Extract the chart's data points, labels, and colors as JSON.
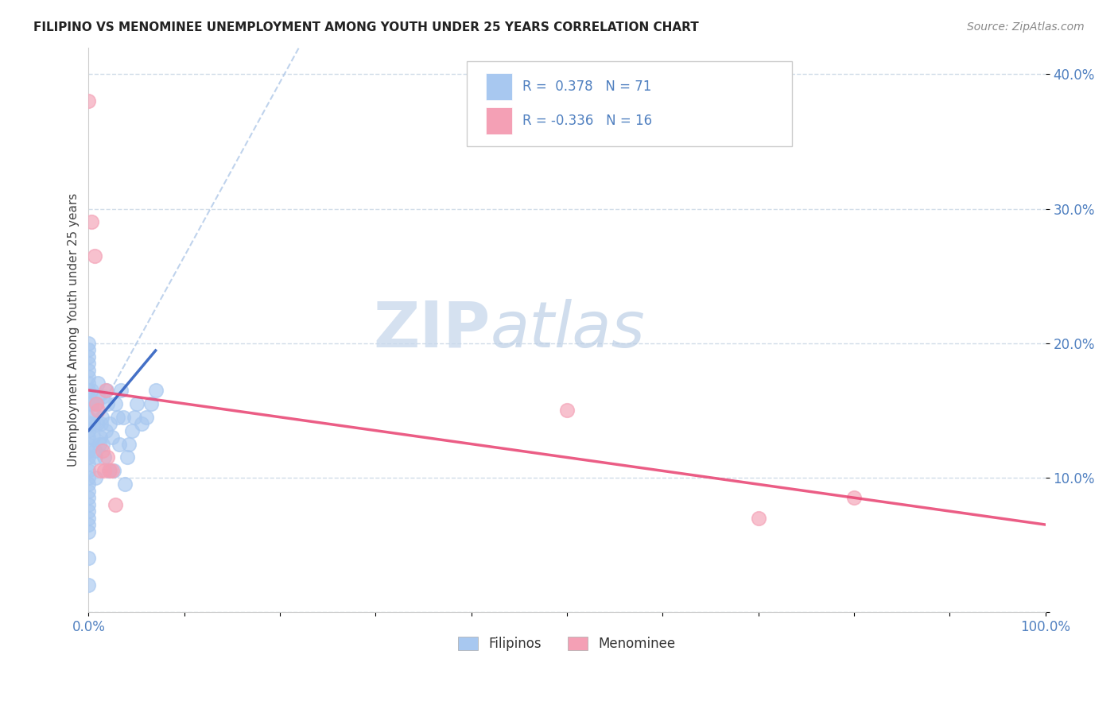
{
  "title": "FILIPINO VS MENOMINEE UNEMPLOYMENT AMONG YOUTH UNDER 25 YEARS CORRELATION CHART",
  "source": "Source: ZipAtlas.com",
  "ylabel": "Unemployment Among Youth under 25 years",
  "xlim": [
    0,
    1.0
  ],
  "ylim": [
    0,
    0.42
  ],
  "filipino_color": "#a8c8f0",
  "menominee_color": "#f4a0b5",
  "filipino_line_color": "#3060c0",
  "menominee_line_color": "#e84070",
  "dash_line_color": "#b0c8e8",
  "grid_color": "#d0dce8",
  "tick_color": "#5080c0",
  "filipino_R": 0.378,
  "filipino_N": 71,
  "menominee_R": -0.336,
  "menominee_N": 16,
  "legend_label_filipino": "Filipinos",
  "legend_label_menominee": "Menominee",
  "watermark_zip": "ZIP",
  "watermark_atlas": "atlas",
  "filipino_x": [
    0.0,
    0.0,
    0.0,
    0.0,
    0.0,
    0.0,
    0.0,
    0.0,
    0.0,
    0.0,
    0.0,
    0.0,
    0.0,
    0.0,
    0.0,
    0.0,
    0.0,
    0.0,
    0.0,
    0.0,
    0.0,
    0.0,
    0.0,
    0.0,
    0.0,
    0.0,
    0.0,
    0.0,
    0.0,
    0.0,
    0.003,
    0.004,
    0.005,
    0.005,
    0.005,
    0.006,
    0.007,
    0.007,
    0.008,
    0.009,
    0.01,
    0.01,
    0.011,
    0.012,
    0.013,
    0.014,
    0.015,
    0.015,
    0.016,
    0.018,
    0.019,
    0.02,
    0.021,
    0.022,
    0.025,
    0.026,
    0.028,
    0.03,
    0.032,
    0.034,
    0.036,
    0.038,
    0.04,
    0.042,
    0.045,
    0.048,
    0.05,
    0.055,
    0.06,
    0.065,
    0.07
  ],
  "filipino_y": [
    0.155,
    0.16,
    0.165,
    0.17,
    0.175,
    0.18,
    0.185,
    0.19,
    0.195,
    0.2,
    0.145,
    0.14,
    0.135,
    0.13,
    0.125,
    0.12,
    0.115,
    0.11,
    0.105,
    0.1,
    0.095,
    0.09,
    0.085,
    0.08,
    0.075,
    0.07,
    0.065,
    0.06,
    0.04,
    0.02,
    0.165,
    0.155,
    0.15,
    0.14,
    0.13,
    0.12,
    0.115,
    0.1,
    0.155,
    0.14,
    0.17,
    0.16,
    0.125,
    0.13,
    0.14,
    0.145,
    0.16,
    0.125,
    0.115,
    0.135,
    0.165,
    0.155,
    0.105,
    0.14,
    0.13,
    0.105,
    0.155,
    0.145,
    0.125,
    0.165,
    0.145,
    0.095,
    0.115,
    0.125,
    0.135,
    0.145,
    0.155,
    0.14,
    0.145,
    0.155,
    0.165
  ],
  "menominee_x": [
    0.0,
    0.003,
    0.006,
    0.008,
    0.01,
    0.012,
    0.015,
    0.016,
    0.018,
    0.02,
    0.022,
    0.025,
    0.028,
    0.5,
    0.7,
    0.8
  ],
  "menominee_y": [
    0.38,
    0.29,
    0.265,
    0.155,
    0.15,
    0.105,
    0.12,
    0.105,
    0.165,
    0.115,
    0.105,
    0.105,
    0.08,
    0.15,
    0.07,
    0.085
  ],
  "fil_trend_x": [
    0.0,
    0.07
  ],
  "fil_trend_y_intercept": 0.135,
  "fil_trend_slope": 0.85,
  "men_trend_x": [
    0.0,
    1.0
  ],
  "men_trend_y_intercept": 0.165,
  "men_trend_slope": -0.1,
  "dash_line_x": [
    0.0,
    0.22
  ],
  "dash_line_y": [
    0.135,
    0.42
  ]
}
